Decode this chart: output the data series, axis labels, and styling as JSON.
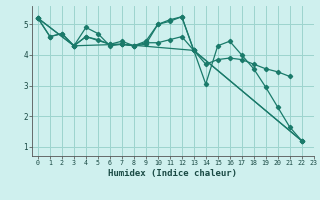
{
  "xlabel": "Humidex (Indice chaleur)",
  "bg_color": "#cff0ee",
  "grid_color": "#9dd4ce",
  "line_color": "#1a7a6a",
  "xlim": [
    -0.5,
    23
  ],
  "ylim": [
    0.7,
    5.6
  ],
  "yticks": [
    1,
    2,
    3,
    4,
    5
  ],
  "xticks": [
    0,
    1,
    2,
    3,
    4,
    5,
    6,
    7,
    8,
    9,
    10,
    11,
    12,
    13,
    14,
    15,
    16,
    17,
    18,
    19,
    20,
    21,
    22,
    23
  ],
  "lines": [
    {
      "x": [
        0,
        1,
        2,
        3,
        4,
        5,
        6,
        7,
        8,
        9,
        10,
        11,
        12,
        13,
        14,
        15,
        16,
        17,
        18,
        19,
        20,
        21,
        22
      ],
      "y": [
        5.2,
        4.6,
        4.7,
        4.3,
        4.9,
        4.7,
        4.3,
        4.35,
        4.3,
        4.35,
        5.0,
        5.15,
        5.25,
        4.15,
        3.05,
        4.3,
        4.45,
        4.0,
        3.55,
        2.95,
        2.3,
        1.65,
        1.2
      ]
    },
    {
      "x": [
        0,
        1,
        2,
        3,
        4,
        5,
        6,
        7,
        8,
        9,
        10,
        11,
        12,
        13,
        14,
        15,
        16,
        17,
        18,
        19,
        20,
        21
      ],
      "y": [
        5.2,
        4.6,
        4.7,
        4.3,
        4.6,
        4.5,
        4.35,
        4.35,
        4.3,
        4.4,
        4.4,
        4.5,
        4.6,
        4.15,
        3.7,
        3.85,
        3.9,
        3.85,
        3.7,
        3.55,
        3.45,
        3.3
      ]
    },
    {
      "x": [
        0,
        3,
        4,
        6,
        7,
        8,
        9,
        10,
        11,
        12,
        13,
        22
      ],
      "y": [
        5.2,
        4.3,
        4.6,
        4.35,
        4.45,
        4.3,
        4.45,
        5.0,
        5.1,
        5.25,
        4.15,
        1.2
      ]
    },
    {
      "x": [
        0,
        3,
        7,
        13,
        22
      ],
      "y": [
        5.2,
        4.3,
        4.35,
        4.15,
        1.2
      ]
    }
  ]
}
